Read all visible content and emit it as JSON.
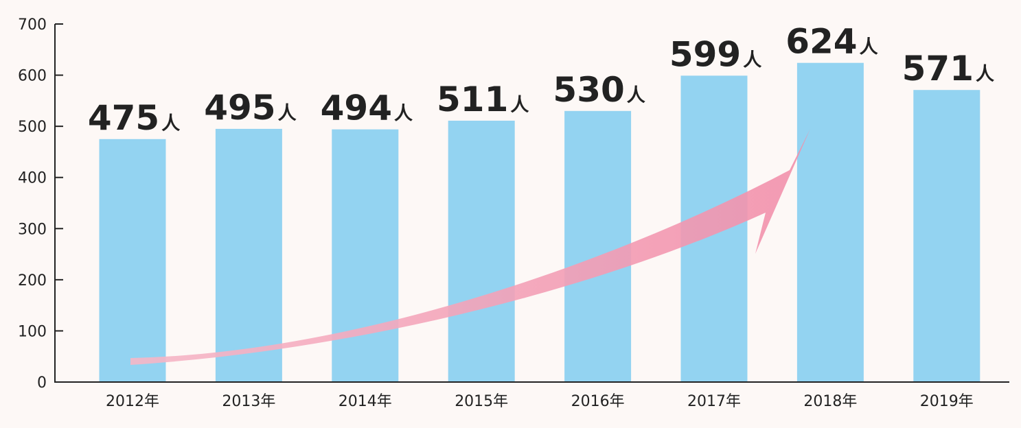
{
  "chart_data": {
    "type": "bar",
    "categories": [
      "2012年",
      "2013年",
      "2014年",
      "2015年",
      "2016年",
      "2017年",
      "2018年",
      "2019年"
    ],
    "values": [
      475,
      495,
      494,
      511,
      530,
      599,
      624,
      571
    ],
    "value_unit": "人",
    "ylim": [
      0,
      700
    ],
    "yticks": [
      "0",
      "100",
      "200",
      "300",
      "400",
      "500",
      "600",
      "700"
    ],
    "grid": false,
    "annotation": "upward-trend-arrow",
    "colors": {
      "bar": "#93d3f1",
      "arrow": "#f29bb2",
      "axis": "#222222"
    }
  }
}
